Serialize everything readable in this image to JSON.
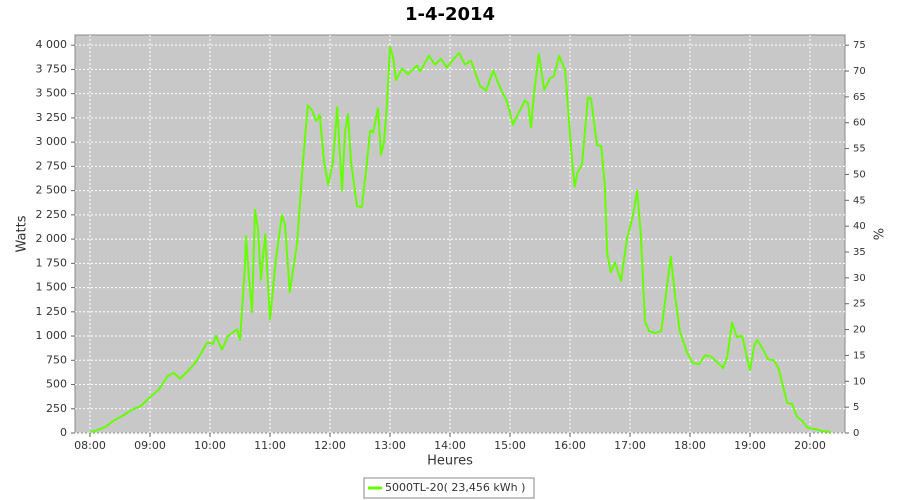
{
  "chart_data": {
    "type": "line",
    "title": "1-4-2014",
    "xlabel": "Heures",
    "ylabel": "Watts",
    "y2label": "%",
    "x": [
      8.0,
      8.1,
      8.25,
      8.4,
      8.55,
      8.7,
      8.85,
      9.0,
      9.15,
      9.3,
      9.4,
      9.5,
      9.6,
      9.75,
      9.85,
      9.95,
      10.05,
      10.1,
      10.2,
      10.3,
      10.45,
      10.5,
      10.58,
      10.6,
      10.65,
      10.7,
      10.75,
      10.8,
      10.85,
      10.92,
      11.0,
      11.1,
      11.2,
      11.25,
      11.33,
      11.45,
      11.55,
      11.63,
      11.7,
      11.77,
      11.83,
      11.9,
      11.97,
      12.05,
      12.12,
      12.2,
      12.25,
      12.3,
      12.35,
      12.45,
      12.53,
      12.6,
      12.67,
      12.72,
      12.8,
      12.85,
      12.9,
      12.95,
      13.0,
      13.05,
      13.1,
      13.2,
      13.3,
      13.45,
      13.5,
      13.65,
      13.75,
      13.85,
      13.95,
      14.05,
      14.15,
      14.25,
      14.35,
      14.5,
      14.6,
      14.72,
      14.85,
      14.95,
      15.05,
      15.15,
      15.25,
      15.3,
      15.35,
      15.4,
      15.48,
      15.57,
      15.67,
      15.73,
      15.82,
      15.92,
      16.0,
      16.05,
      16.08,
      16.12,
      16.2,
      16.3,
      16.35,
      16.45,
      16.52,
      16.58,
      16.62,
      16.68,
      16.75,
      16.85,
      16.95,
      17.05,
      17.12,
      17.18,
      17.25,
      17.32,
      17.42,
      17.52,
      17.6,
      17.68,
      17.75,
      17.83,
      17.95,
      18.05,
      18.15,
      18.25,
      18.35,
      18.45,
      18.55,
      18.62,
      18.7,
      18.78,
      18.87,
      18.95,
      19.0,
      19.07,
      19.12,
      19.2,
      19.3,
      19.4,
      19.48,
      19.55,
      19.62,
      19.7,
      19.78,
      19.88,
      19.95,
      20.0,
      20.1,
      20.2,
      20.35
    ],
    "series": [
      {
        "name": "5000TL-20( 23,456 kWh )",
        "color": "#66ff00",
        "values": [
          10,
          25,
          60,
          130,
          180,
          240,
          280,
          370,
          450,
          590,
          620,
          560,
          620,
          720,
          820,
          930,
          920,
          1000,
          860,
          1000,
          1070,
          960,
          1700,
          2030,
          1600,
          1250,
          2300,
          2100,
          1580,
          2050,
          1170,
          1800,
          2250,
          2150,
          1450,
          1950,
          2800,
          3380,
          3330,
          3220,
          3280,
          2800,
          2560,
          2800,
          3360,
          2500,
          3100,
          3290,
          2800,
          2340,
          2330,
          2700,
          3120,
          3100,
          3350,
          2870,
          3000,
          3400,
          3980,
          3880,
          3640,
          3760,
          3700,
          3790,
          3730,
          3890,
          3800,
          3860,
          3770,
          3850,
          3920,
          3800,
          3840,
          3580,
          3530,
          3740,
          3540,
          3420,
          3180,
          3310,
          3430,
          3400,
          3150,
          3500,
          3910,
          3540,
          3660,
          3680,
          3890,
          3740,
          3080,
          2700,
          2540,
          2680,
          2770,
          3460,
          3450,
          2970,
          2960,
          2560,
          1850,
          1660,
          1760,
          1570,
          2000,
          2250,
          2500,
          2050,
          1150,
          1050,
          1030,
          1050,
          1430,
          1820,
          1420,
          1050,
          830,
          720,
          710,
          800,
          790,
          730,
          670,
          780,
          1140,
          990,
          1000,
          780,
          650,
          900,
          960,
          880,
          760,
          750,
          660,
          480,
          310,
          300,
          170,
          120,
          60,
          50,
          40,
          20,
          10
        ]
      }
    ],
    "xlim": [
      7.75,
      20.583
    ],
    "xticks": [
      {
        "value": 8,
        "label": "08:00"
      },
      {
        "value": 9,
        "label": "09:00"
      },
      {
        "value": 10,
        "label": "10:00"
      },
      {
        "value": 11,
        "label": "11:00"
      },
      {
        "value": 12,
        "label": "12:00"
      },
      {
        "value": 13,
        "label": "13:00"
      },
      {
        "value": 14,
        "label": "14:00"
      },
      {
        "value": 15,
        "label": "15:00"
      },
      {
        "value": 16,
        "label": "16:00"
      },
      {
        "value": 17,
        "label": "17:00"
      },
      {
        "value": 18,
        "label": "18:00"
      },
      {
        "value": 19,
        "label": "19:00"
      },
      {
        "value": 20,
        "label": "20:00"
      }
    ],
    "ylim": [
      0,
      4105
    ],
    "yticks": [
      0,
      250,
      500,
      750,
      {
        "value": 1000,
        "label": "1 000"
      },
      {
        "value": 1250,
        "label": "1 250"
      },
      {
        "value": 1500,
        "label": "1 500"
      },
      {
        "value": 1750,
        "label": "1 750"
      },
      {
        "value": 2000,
        "label": "2 000"
      },
      {
        "value": 2250,
        "label": "2 250"
      },
      {
        "value": 2500,
        "label": "2 500"
      },
      {
        "value": 2750,
        "label": "2 750"
      },
      {
        "value": 3000,
        "label": "3 000"
      },
      {
        "value": 3250,
        "label": "3 250"
      },
      {
        "value": 3500,
        "label": "3 500"
      },
      {
        "value": 3750,
        "label": "3 750"
      },
      {
        "value": 4000,
        "label": "4 000"
      }
    ],
    "y2lim": [
      0,
      76.97
    ],
    "y2ticks": [
      0,
      5,
      10,
      15,
      20,
      25,
      30,
      35,
      40,
      45,
      50,
      55,
      60,
      65,
      70,
      75
    ],
    "grid": true,
    "background": "#c8c8c8"
  }
}
